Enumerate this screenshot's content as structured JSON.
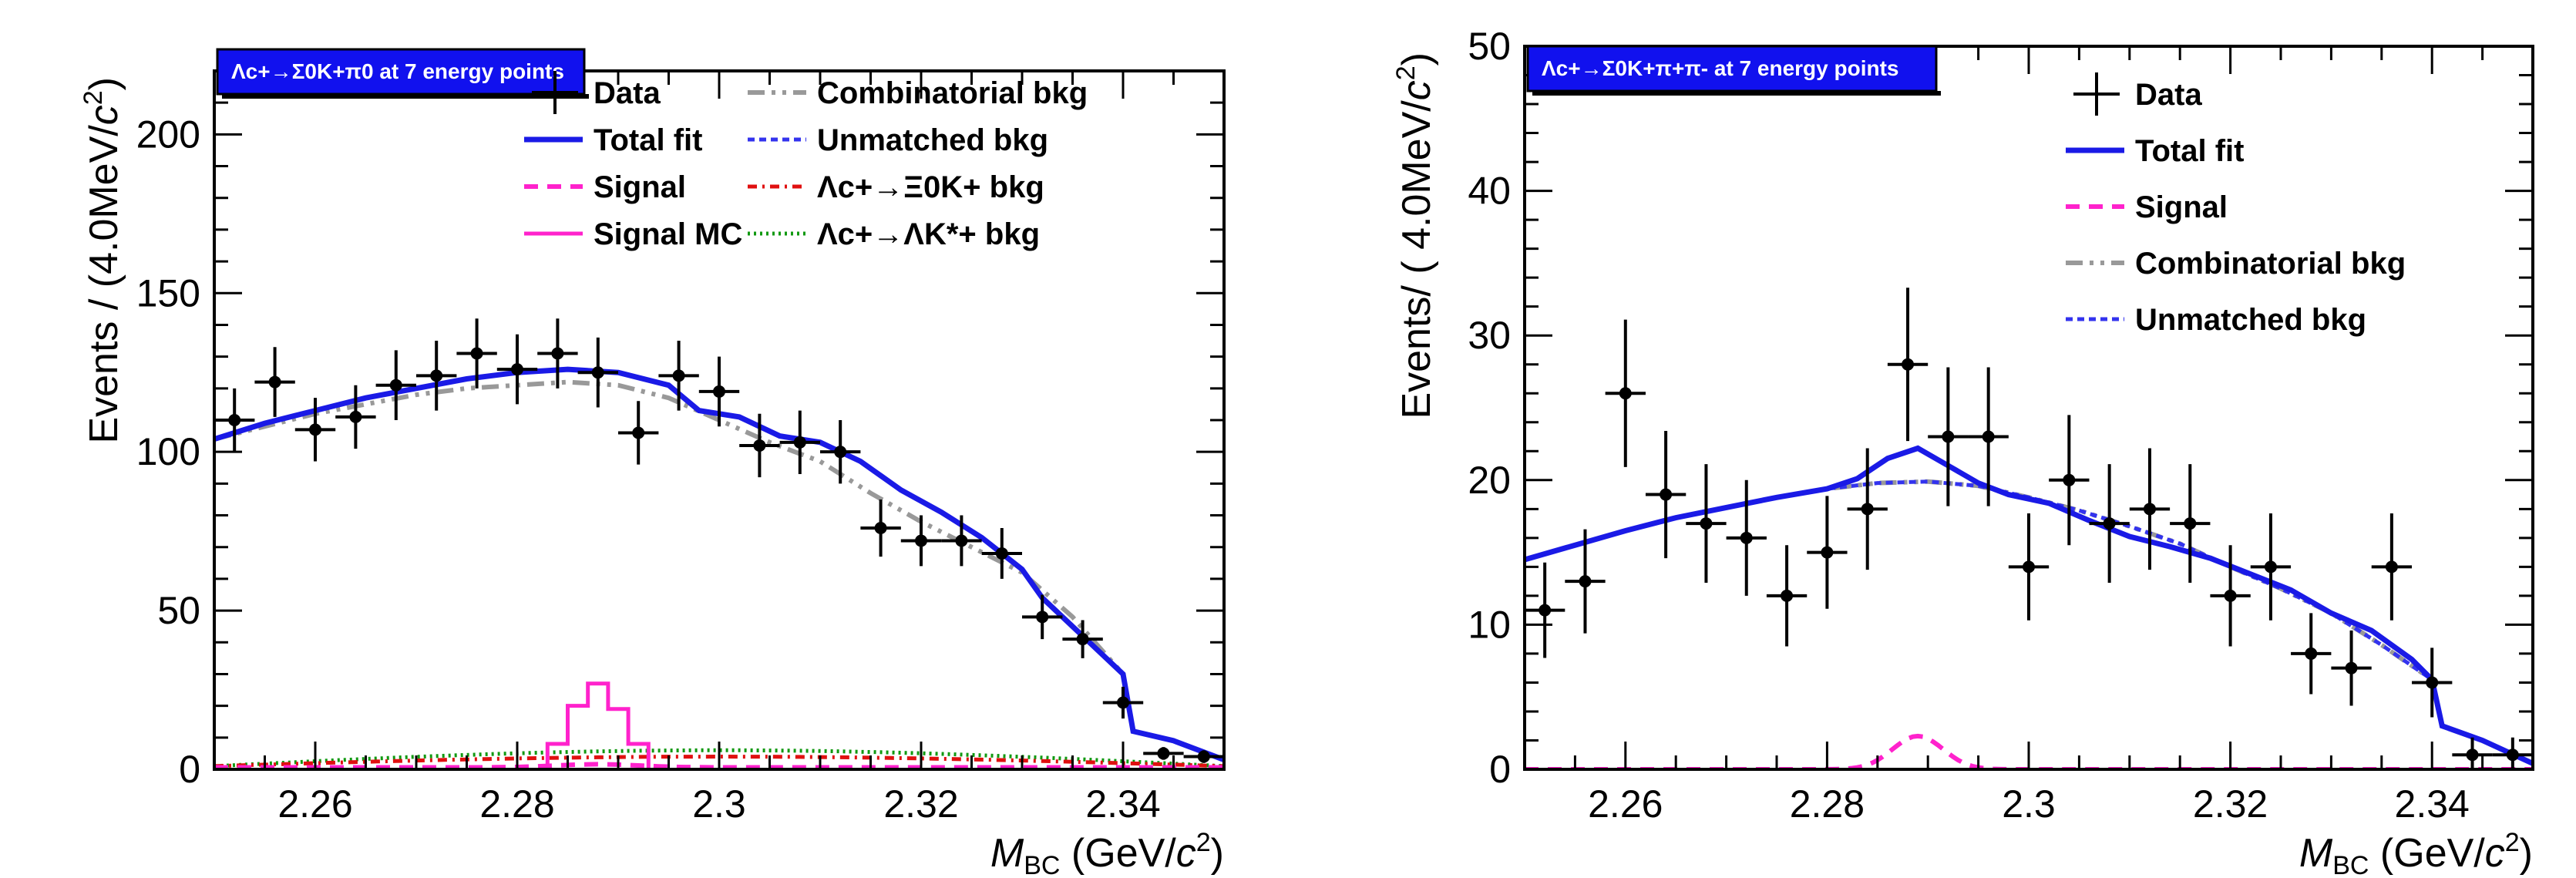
{
  "chart_data": [
    {
      "type": "line",
      "banner": "Λc+→Σ0K+π0  at 7 energy points",
      "xlabel": "MBC (GeV/c2)",
      "xlabel_main": "M",
      "xlabel_sub": "BC",
      "xlabel_rest": " (GeV/",
      "xlabel_c": "c",
      "xlabel_exp": "2",
      "xlabel_close": ")",
      "ylabel": "Events / (4.0MeV/c2)",
      "ylabel_pre": "Events / (4.0MeV/",
      "ylabel_c": "c",
      "ylabel_exp": "2",
      "ylabel_close": ")",
      "xlim": [
        2.25,
        2.35
      ],
      "ylim": [
        0,
        220
      ],
      "xticks": [
        2.26,
        2.28,
        2.3,
        2.32,
        2.34
      ],
      "xtick_labels": [
        "2.26",
        "2.28",
        "2.3",
        "2.32",
        "2.34"
      ],
      "yticks": [
        0,
        50,
        100,
        150,
        200
      ],
      "ytick_labels": [
        "0",
        "50",
        "100",
        "150",
        "200"
      ],
      "legend": [
        {
          "label": "Data",
          "style": "data"
        },
        {
          "label": "Total fit",
          "style": "total"
        },
        {
          "label": "Signal",
          "style": "signal"
        },
        {
          "label": "Signal MC",
          "style": "mc"
        },
        {
          "label": "Combinatorial bkg",
          "style": "comb"
        },
        {
          "label": "Unmatched bkg",
          "style": "unmatched"
        },
        {
          "label": "Λc+→Ξ0K+ bkg",
          "style": "xi"
        },
        {
          "label": "Λc+→ΛK*+ bkg",
          "style": "lambda"
        }
      ],
      "data_points": [
        {
          "x": 2.252,
          "y": 110,
          "err": 10
        },
        {
          "x": 2.256,
          "y": 122,
          "err": 11
        },
        {
          "x": 2.26,
          "y": 107,
          "err": 10
        },
        {
          "x": 2.264,
          "y": 111,
          "err": 10
        },
        {
          "x": 2.268,
          "y": 121,
          "err": 11
        },
        {
          "x": 2.272,
          "y": 124,
          "err": 11
        },
        {
          "x": 2.276,
          "y": 131,
          "err": 11
        },
        {
          "x": 2.28,
          "y": 126,
          "err": 11
        },
        {
          "x": 2.284,
          "y": 131,
          "err": 11
        },
        {
          "x": 2.288,
          "y": 125,
          "err": 11
        },
        {
          "x": 2.292,
          "y": 106,
          "err": 10
        },
        {
          "x": 2.296,
          "y": 124,
          "err": 11
        },
        {
          "x": 2.3,
          "y": 119,
          "err": 11
        },
        {
          "x": 2.304,
          "y": 102,
          "err": 10
        },
        {
          "x": 2.308,
          "y": 103,
          "err": 10
        },
        {
          "x": 2.312,
          "y": 100,
          "err": 10
        },
        {
          "x": 2.316,
          "y": 76,
          "err": 9
        },
        {
          "x": 2.32,
          "y": 72,
          "err": 8
        },
        {
          "x": 2.324,
          "y": 72,
          "err": 8
        },
        {
          "x": 2.328,
          "y": 68,
          "err": 8
        },
        {
          "x": 2.332,
          "y": 48,
          "err": 7
        },
        {
          "x": 2.336,
          "y": 41,
          "err": 6
        },
        {
          "x": 2.34,
          "y": 21,
          "err": 5
        },
        {
          "x": 2.344,
          "y": 5,
          "err": 2
        },
        {
          "x": 2.348,
          "y": 4,
          "err": 2
        }
      ],
      "total_fit": {
        "x": [
          2.25,
          2.255,
          2.26,
          2.265,
          2.27,
          2.275,
          2.28,
          2.285,
          2.29,
          2.295,
          2.298,
          2.302,
          2.306,
          2.31,
          2.314,
          2.318,
          2.322,
          2.326,
          2.33,
          2.332,
          2.336,
          2.34,
          2.341,
          2.345,
          2.35
        ],
        "y": [
          104,
          109,
          113,
          117,
          120,
          123,
          125,
          126,
          125,
          121,
          113,
          111,
          105,
          103,
          97,
          88,
          81,
          73,
          63,
          54,
          42,
          30,
          12,
          9,
          3
        ]
      },
      "comb_bkg": {
        "x": [
          2.25,
          2.255,
          2.26,
          2.265,
          2.27,
          2.275,
          2.28,
          2.285,
          2.29,
          2.295,
          2.3,
          2.305,
          2.31,
          2.315,
          2.32,
          2.325,
          2.33,
          2.335,
          2.34,
          2.341,
          2.345,
          2.35
        ],
        "y": [
          104,
          108,
          112,
          115,
          118,
          120,
          121,
          122,
          121,
          117,
          110,
          103,
          97,
          87,
          78,
          70,
          62,
          48,
          30,
          12,
          9,
          3
        ]
      },
      "signal_mc": {
        "edges": [
          2.283,
          2.285,
          2.287,
          2.289,
          2.291,
          2.293
        ],
        "heights": [
          8,
          20,
          27,
          19,
          8
        ]
      },
      "signal_peak": 1,
      "xi_bkg_max": 4,
      "lambda_bkg_max": 6
    },
    {
      "type": "line",
      "banner": "Λc+→Σ0K+π+π-  at 7 energy points",
      "xlabel": "MBC (GeV/c2)",
      "xlabel_main": "M",
      "xlabel_sub": "BC",
      "xlabel_rest": " (GeV/",
      "xlabel_c": "c",
      "xlabel_exp": "2",
      "xlabel_close": ")",
      "ylabel": "Events/ ( 4.0MeV/c2)",
      "ylabel_pre": "Events/ ( 4.0MeV/",
      "ylabel_c": "c",
      "ylabel_exp": "2",
      "ylabel_close": ")",
      "xlim": [
        2.25,
        2.35
      ],
      "ylim": [
        0,
        50
      ],
      "xticks": [
        2.26,
        2.28,
        2.3,
        2.32,
        2.34
      ],
      "xtick_labels": [
        "2.26",
        "2.28",
        "2.3",
        "2.32",
        "2.34"
      ],
      "yticks": [
        0,
        10,
        20,
        30,
        40,
        50
      ],
      "ytick_labels": [
        "0",
        "10",
        "20",
        "30",
        "40",
        "50"
      ],
      "legend": [
        {
          "label": "Data",
          "style": "data"
        },
        {
          "label": "Total fit",
          "style": "total"
        },
        {
          "label": "Signal",
          "style": "signal"
        },
        {
          "label": "Combinatorial bkg",
          "style": "comb"
        },
        {
          "label": "Unmatched bkg",
          "style": "unmatched"
        }
      ],
      "data_points": [
        {
          "x": 2.252,
          "y": 11,
          "err": 3.3
        },
        {
          "x": 2.256,
          "y": 13,
          "err": 3.6
        },
        {
          "x": 2.26,
          "y": 26,
          "err": 5.1
        },
        {
          "x": 2.264,
          "y": 19,
          "err": 4.4
        },
        {
          "x": 2.268,
          "y": 17,
          "err": 4.1
        },
        {
          "x": 2.272,
          "y": 16,
          "err": 4.0
        },
        {
          "x": 2.276,
          "y": 12,
          "err": 3.5
        },
        {
          "x": 2.28,
          "y": 15,
          "err": 3.9
        },
        {
          "x": 2.284,
          "y": 18,
          "err": 4.2
        },
        {
          "x": 2.288,
          "y": 28,
          "err": 5.3
        },
        {
          "x": 2.292,
          "y": 23,
          "err": 4.8
        },
        {
          "x": 2.296,
          "y": 23,
          "err": 4.8
        },
        {
          "x": 2.3,
          "y": 14,
          "err": 3.7
        },
        {
          "x": 2.304,
          "y": 20,
          "err": 4.5
        },
        {
          "x": 2.308,
          "y": 17,
          "err": 4.1
        },
        {
          "x": 2.312,
          "y": 18,
          "err": 4.2
        },
        {
          "x": 2.316,
          "y": 17,
          "err": 4.1
        },
        {
          "x": 2.32,
          "y": 12,
          "err": 3.5
        },
        {
          "x": 2.324,
          "y": 14,
          "err": 3.7
        },
        {
          "x": 2.328,
          "y": 8,
          "err": 2.8
        },
        {
          "x": 2.332,
          "y": 7,
          "err": 2.6
        },
        {
          "x": 2.336,
          "y": 14,
          "err": 3.7
        },
        {
          "x": 2.34,
          "y": 6,
          "err": 2.4
        },
        {
          "x": 2.344,
          "y": 1,
          "err": 1.2
        },
        {
          "x": 2.348,
          "y": 1,
          "err": 1.2
        }
      ],
      "total_fit": {
        "x": [
          2.25,
          2.255,
          2.26,
          2.265,
          2.27,
          2.275,
          2.28,
          2.283,
          2.286,
          2.289,
          2.292,
          2.295,
          2.298,
          2.302,
          2.306,
          2.31,
          2.314,
          2.318,
          2.322,
          2.326,
          2.33,
          2.334,
          2.338,
          2.34,
          2.341,
          2.345,
          2.35
        ],
        "y": [
          14.5,
          15.5,
          16.5,
          17.4,
          18.1,
          18.8,
          19.4,
          20.1,
          21.5,
          22.2,
          21.0,
          19.8,
          19.0,
          18.4,
          17.2,
          16.1,
          15.4,
          14.6,
          13.5,
          12.4,
          10.8,
          9.6,
          7.6,
          6.2,
          3.0,
          2.0,
          0.4
        ]
      },
      "comb_bkg": {
        "x": [
          2.25,
          2.255,
          2.26,
          2.265,
          2.27,
          2.275,
          2.28,
          2.285,
          2.29,
          2.295,
          2.3,
          2.305,
          2.31,
          2.315,
          2.32,
          2.325,
          2.33,
          2.335,
          2.34,
          2.341,
          2.345,
          2.35
        ],
        "y": [
          14.5,
          15.5,
          16.5,
          17.4,
          18.1,
          18.8,
          19.4,
          19.8,
          19.9,
          19.6,
          18.8,
          17.9,
          16.8,
          15.6,
          14.0,
          12.5,
          10.8,
          8.6,
          6.2,
          3.0,
          2.0,
          0.4
        ]
      },
      "signal_curve": {
        "mean": 2.289,
        "sigma": 0.0025,
        "peak": 2.3
      }
    }
  ]
}
